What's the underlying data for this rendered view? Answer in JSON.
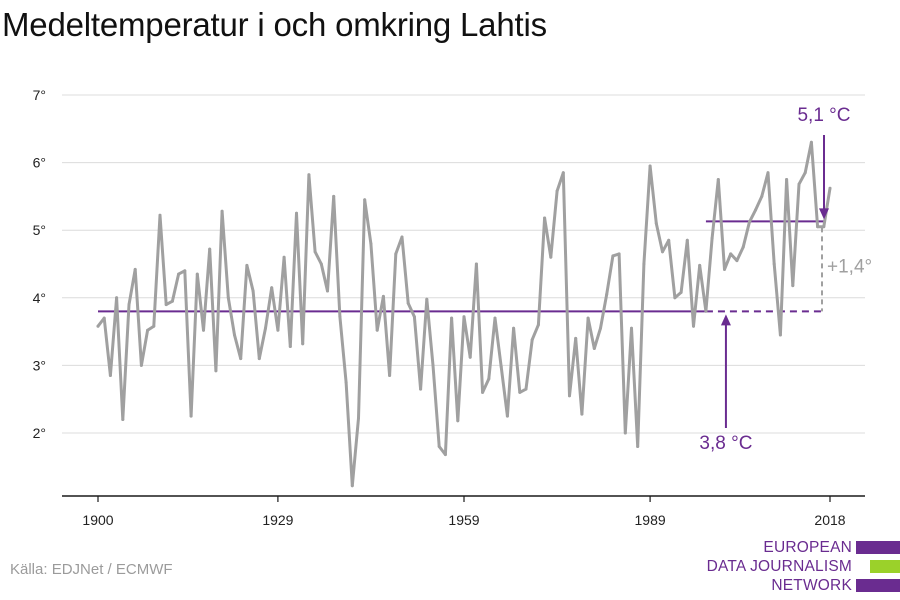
{
  "title": "Medeltemperatur i och omkring Lahtis",
  "source": "Källa: EDJNet / ECMWF",
  "logo": {
    "lines": [
      "EUROPEAN",
      "DATA JOURNALISM",
      "NETWORK"
    ]
  },
  "colors": {
    "line": "#a0a0a0",
    "accent": "#6a2c90",
    "grid": "#dcdcdc",
    "logo_green": "#9bd12a"
  },
  "chart_data": {
    "type": "line",
    "title": "Medeltemperatur i och omkring Lahtis",
    "xlabel": "",
    "ylabel": "",
    "xlim": [
      1900,
      2018
    ],
    "ylim": [
      1.2,
      7.2
    ],
    "x_ticks": [
      1900,
      1929,
      1959,
      1989,
      2018
    ],
    "y_ticks": [
      2,
      3,
      4,
      5,
      6,
      7
    ],
    "y_tick_labels": [
      "2°",
      "3°",
      "4°",
      "5°",
      "6°",
      "7°"
    ],
    "grid": "horizontal",
    "series": [
      {
        "name": "",
        "x_start": 1900,
        "values": [
          3.58,
          3.7,
          2.85,
          4.0,
          2.2,
          3.9,
          4.42,
          3.0,
          3.52,
          3.58,
          5.22,
          3.9,
          3.95,
          4.35,
          4.4,
          2.25,
          4.35,
          3.52,
          4.72,
          2.92,
          5.28,
          4.0,
          3.45,
          3.1,
          4.48,
          4.1,
          3.1,
          3.55,
          4.15,
          3.52,
          4.6,
          3.28,
          5.25,
          3.32,
          5.82,
          4.68,
          4.5,
          4.1,
          5.5,
          3.72,
          2.75,
          1.22,
          2.22,
          5.45,
          4.8,
          3.52,
          4.02,
          2.85,
          4.65,
          4.9,
          3.92,
          3.72,
          2.65,
          3.98,
          3.0,
          1.8,
          1.68,
          3.7,
          2.18,
          3.72,
          3.12,
          4.5,
          2.6,
          2.8,
          3.7,
          2.98,
          2.25,
          3.55,
          2.6,
          2.65,
          3.38,
          3.6,
          5.18,
          4.6,
          5.58,
          5.85,
          2.55,
          3.4,
          2.28,
          3.7,
          3.25,
          3.55,
          4.05,
          4.62,
          4.65,
          2.0,
          3.55,
          1.8,
          4.5,
          5.95,
          5.1,
          4.68,
          4.85,
          4.0,
          4.08,
          4.85,
          3.58,
          4.48,
          3.8,
          4.88,
          5.75,
          4.42,
          4.65,
          4.55,
          4.75,
          5.12,
          5.3,
          5.5,
          5.85,
          4.5,
          3.45,
          5.75,
          4.18,
          5.68,
          5.85,
          6.3,
          5.05,
          5.05,
          5.62
        ]
      }
    ],
    "reference_lines": [
      {
        "value": 3.8,
        "from": 1900,
        "to": 2018,
        "solid_until": 1998,
        "label": "3,8 °C"
      },
      {
        "value": 5.13,
        "from": 1998,
        "to": 2018,
        "label": "5,1 °C"
      }
    ],
    "difference_label": "+1,4°"
  }
}
